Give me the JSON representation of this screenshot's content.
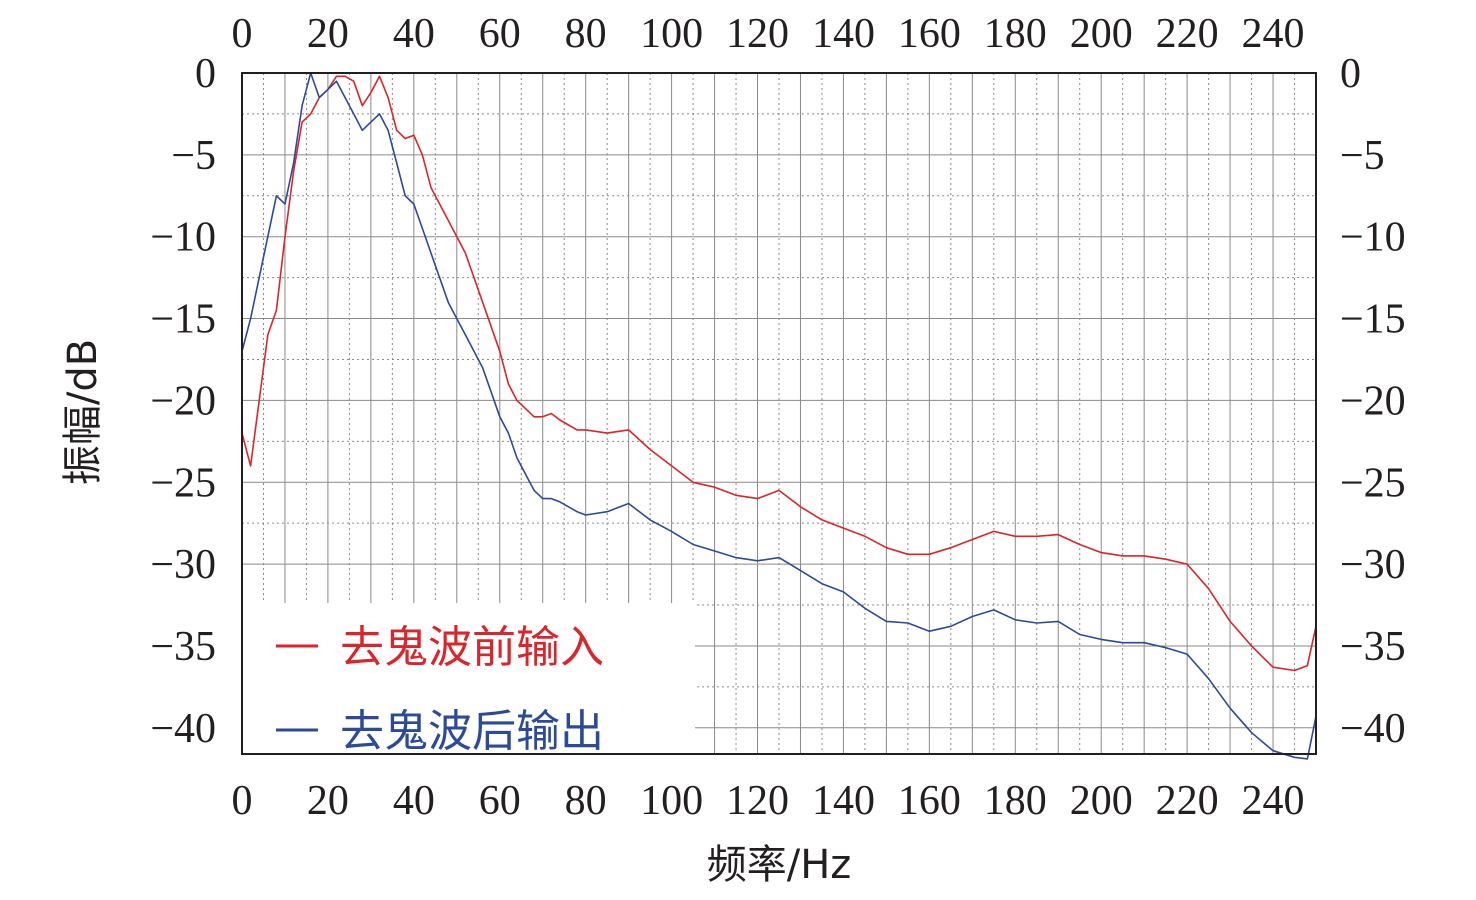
{
  "chart_data": {
    "type": "line",
    "xlabel": "频率/Hz",
    "ylabel": "振幅/dB",
    "xlim": [
      0,
      250
    ],
    "ylim": [
      -42,
      0
    ],
    "x_ticks": [
      0,
      20,
      40,
      60,
      80,
      100,
      120,
      140,
      160,
      180,
      200,
      220,
      240
    ],
    "y_ticks": [
      0,
      -5,
      -10,
      -15,
      -20,
      -25,
      -30,
      -35,
      -40
    ],
    "x_tick_labels": [
      "0",
      "20",
      "40",
      "60",
      "80",
      "100",
      "120",
      "140",
      "160",
      "180",
      "200",
      "220",
      "240"
    ],
    "y_tick_labels": [
      "0",
      "−5",
      "−10",
      "−15",
      "−20",
      "−25",
      "−30",
      "−35",
      "−40"
    ],
    "grid": true,
    "legend_position": "bottom-left",
    "series": [
      {
        "name": "去鬼波前输入",
        "color": "#d9262b",
        "x": [
          0,
          2,
          4,
          6,
          8,
          10,
          12,
          14,
          16,
          18,
          20,
          22,
          24,
          26,
          28,
          30,
          32,
          34,
          36,
          38,
          40,
          42,
          44,
          46,
          48,
          50,
          52,
          54,
          56,
          58,
          60,
          62,
          64,
          66,
          68,
          70,
          72,
          74,
          76,
          78,
          80,
          85,
          90,
          95,
          100,
          105,
          110,
          115,
          120,
          125,
          130,
          135,
          140,
          145,
          150,
          155,
          160,
          165,
          170,
          175,
          180,
          185,
          190,
          195,
          200,
          205,
          210,
          215,
          220,
          225,
          230,
          235,
          240,
          245,
          248,
          250
        ],
        "y": [
          -22,
          -24,
          -20,
          -16,
          -14.5,
          -10,
          -6,
          -3,
          -2.5,
          -1.5,
          -1,
          -0.2,
          -0.2,
          -0.5,
          -2,
          -1.2,
          -0.2,
          -1.5,
          -3.5,
          -4,
          -3.8,
          -5,
          -7,
          -8,
          -9,
          -10,
          -11,
          -12.5,
          -14,
          -15.5,
          -17,
          -19,
          -20,
          -20.5,
          -21,
          -21,
          -20.8,
          -21.2,
          -21.5,
          -21.8,
          -21.8,
          -22,
          -21.8,
          -23,
          -24,
          -25,
          -25.3,
          -25.8,
          -26,
          -25.5,
          -26.5,
          -27.3,
          -27.8,
          -28.3,
          -29,
          -29.4,
          -29.4,
          -29,
          -28.5,
          -28,
          -28.3,
          -28.3,
          -28.2,
          -28.8,
          -29.3,
          -29.5,
          -29.5,
          -29.7,
          -30,
          -31.5,
          -33.5,
          -35,
          -36.3,
          -36.5,
          -36.2,
          -33.8
        ]
      },
      {
        "name": "去鬼波后输出",
        "color": "#2b4a9a",
        "x": [
          0,
          2,
          4,
          6,
          8,
          10,
          12,
          14,
          16,
          18,
          20,
          22,
          24,
          26,
          28,
          30,
          32,
          34,
          36,
          38,
          40,
          42,
          44,
          46,
          48,
          50,
          52,
          54,
          56,
          58,
          60,
          62,
          64,
          66,
          68,
          70,
          72,
          74,
          76,
          78,
          80,
          85,
          90,
          95,
          100,
          105,
          110,
          115,
          120,
          125,
          130,
          135,
          140,
          145,
          150,
          155,
          160,
          165,
          170,
          175,
          180,
          185,
          190,
          195,
          200,
          205,
          210,
          215,
          220,
          225,
          230,
          235,
          240,
          245,
          248,
          250
        ],
        "y": [
          -17,
          -15,
          -12.5,
          -10,
          -7.5,
          -8,
          -5.5,
          -2,
          0,
          -1.5,
          -1,
          -0.5,
          -1.5,
          -2.5,
          -3.5,
          -3,
          -2.5,
          -3.5,
          -5.5,
          -7.5,
          -8,
          -9.5,
          -11,
          -12.5,
          -14,
          -15,
          -16,
          -17,
          -18,
          -19.5,
          -21,
          -22,
          -23.5,
          -24.5,
          -25.5,
          -26,
          -26,
          -26.2,
          -26.5,
          -26.8,
          -27,
          -26.8,
          -26.3,
          -27.3,
          -28,
          -28.8,
          -29.2,
          -29.6,
          -29.8,
          -29.6,
          -30.4,
          -31.2,
          -31.7,
          -32.7,
          -33.5,
          -33.6,
          -34.1,
          -33.8,
          -33.2,
          -32.8,
          -33.4,
          -33.6,
          -33.5,
          -34.3,
          -34.6,
          -34.8,
          -34.8,
          -35.1,
          -35.5,
          -37,
          -38.8,
          -40.3,
          -41.4,
          -41.8,
          -41.9,
          -39.3
        ]
      }
    ]
  }
}
